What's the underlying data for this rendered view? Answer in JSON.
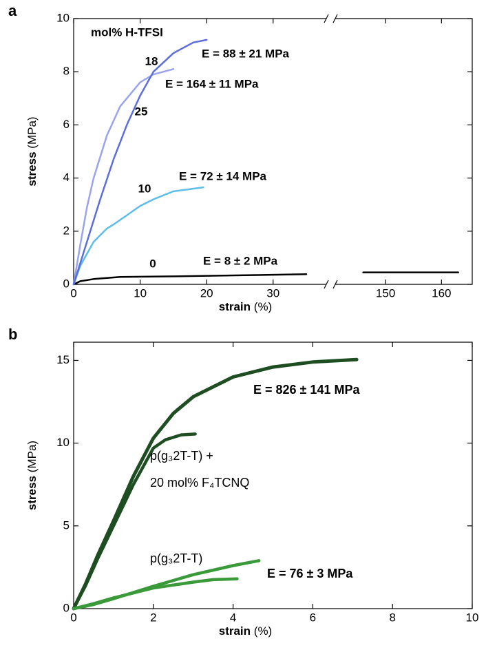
{
  "chart_data": [
    {
      "type": "line",
      "panel": "a",
      "annotation_title": "mol% H-TFSI",
      "xlabel": "strain",
      "xlabel_unit": "(%)",
      "ylabel": "stress",
      "ylabel_unit": "(MPa)",
      "xlim": [
        0,
        165.5
      ],
      "xbreak": [
        38,
        141
      ],
      "xticks": [
        0,
        10,
        20,
        30,
        150,
        160
      ],
      "ylim": [
        0,
        10
      ],
      "yticks": [
        0,
        2,
        4,
        6,
        8,
        10
      ],
      "series": [
        {
          "name": "0",
          "color": "#000000",
          "x": [
            0,
            1,
            3,
            7,
            15,
            25,
            35,
            90,
            146,
            163
          ],
          "values": [
            0,
            0.12,
            0.2,
            0.28,
            0.3,
            0.34,
            0.38,
            null,
            0.45,
            0.45
          ]
        },
        {
          "name": "10",
          "color": "#5bbde8",
          "x": [
            0,
            1,
            3,
            5,
            6,
            8,
            10,
            12,
            15,
            19.5
          ],
          "values": [
            0,
            0.7,
            1.6,
            2.1,
            2.25,
            2.6,
            2.95,
            3.2,
            3.5,
            3.65
          ]
        },
        {
          "name": "18",
          "color": "#99a4ec",
          "x": [
            0,
            1,
            2,
            3,
            5,
            7,
            10,
            12,
            15
          ],
          "values": [
            0,
            1.5,
            2.9,
            4.0,
            5.6,
            6.7,
            7.6,
            7.9,
            8.1
          ]
        },
        {
          "name": "25",
          "color": "#5b6edb",
          "x": [
            0,
            2,
            4,
            6,
            8,
            10,
            12,
            15,
            18,
            20
          ],
          "values": [
            0,
            1.6,
            3.2,
            4.7,
            6.0,
            7.1,
            8.0,
            8.7,
            9.1,
            9.2
          ]
        }
      ],
      "annotations": [
        {
          "text": "E = 88 ± 21 MPa",
          "color": "#5b6edb"
        },
        {
          "text": "E = 164 ± 11 MPa",
          "color": "#99a4ec"
        },
        {
          "text": "E = 72 ± 14 MPa",
          "color": "#5bbde8"
        },
        {
          "text": "E = 8 ± 2 MPa",
          "color": "#000000"
        }
      ]
    },
    {
      "type": "line",
      "panel": "b",
      "xlabel": "strain",
      "xlabel_unit": "(%)",
      "ylabel": "stress",
      "ylabel_unit": "(MPa)",
      "xlim": [
        0,
        10
      ],
      "xticks": [
        0,
        2,
        4,
        6,
        8,
        10
      ],
      "ylim": [
        0,
        16.1
      ],
      "yticks": [
        0,
        5,
        10,
        15
      ],
      "series": [
        {
          "color": "#1f4d22",
          "x": [
            0,
            0.3,
            0.6,
            1,
            1.5,
            2,
            2.5,
            3,
            4,
            5,
            6,
            7.1
          ],
          "values": [
            0,
            1.5,
            3.2,
            5.3,
            8,
            10.3,
            11.8,
            12.8,
            14,
            14.6,
            14.9,
            15.05
          ]
        },
        {
          "color": "#1f4d22",
          "x": [
            0,
            0.3,
            0.6,
            1,
            1.5,
            2,
            2.3,
            2.7,
            3.05
          ],
          "values": [
            0,
            1.4,
            3,
            5,
            7.5,
            9.7,
            10.2,
            10.5,
            10.55
          ]
        },
        {
          "color": "#3a9a3a",
          "x": [
            0,
            0.5,
            1,
            2,
            3,
            4,
            4.65
          ],
          "values": [
            0,
            0.25,
            0.6,
            1.35,
            2.05,
            2.6,
            2.9
          ]
        },
        {
          "color": "#3a9a3a",
          "x": [
            0,
            0.5,
            1,
            2,
            3,
            3.5,
            4.1
          ],
          "values": [
            0,
            0.3,
            0.65,
            1.25,
            1.6,
            1.75,
            1.8
          ]
        }
      ],
      "annotations": [
        {
          "text": "E = 826 ± 141 MPa",
          "color": "#1f4d22"
        },
        {
          "text": "p(g₃2T-T) +",
          "color": "#1f4d22"
        },
        {
          "text": "20 mol% F₄TCNQ",
          "color": "#1f4d22"
        },
        {
          "text": "p(g₃2T-T)",
          "color": "#3a9a3a"
        },
        {
          "text": "E = 76 ± 3 MPa",
          "color": "#3a9a3a"
        }
      ]
    }
  ]
}
